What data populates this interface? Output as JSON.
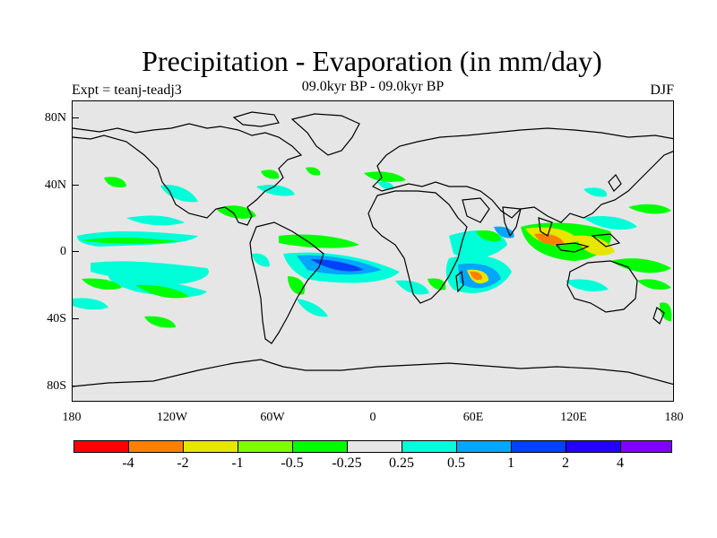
{
  "title": "Precipitation - Evaporation (in mm/day)",
  "subtitle": "09.0kyr BP - 09.0kyr BP",
  "experiment": "Expt = teanj-teadj3",
  "season": "DJF",
  "colors": {
    "ocean_background": "#e6e6e6",
    "coastline": "#000000"
  },
  "lat_labels": [
    "80N",
    "40N",
    "0",
    "40S",
    "80S"
  ],
  "lon_labels": [
    "180",
    "120W",
    "60W",
    "0",
    "60E",
    "120E",
    "180"
  ],
  "legend": {
    "colors": [
      "#ff0000",
      "#ff8000",
      "#e6e600",
      "#80ff00",
      "#00ff00",
      "#e6e6e6",
      "#00ffd9",
      "#00a6ff",
      "#0040ff",
      "#2400ff",
      "#8000ff"
    ],
    "labels": [
      "-4",
      "-2",
      "-1",
      "-0.5",
      "-0.25",
      "0.25",
      "0.5",
      "1",
      "2",
      "4"
    ]
  }
}
